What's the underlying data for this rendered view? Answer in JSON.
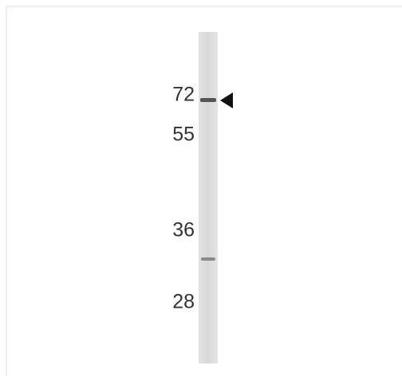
{
  "blot": {
    "markers": [
      "72",
      "55",
      "36",
      "28"
    ]
  }
}
